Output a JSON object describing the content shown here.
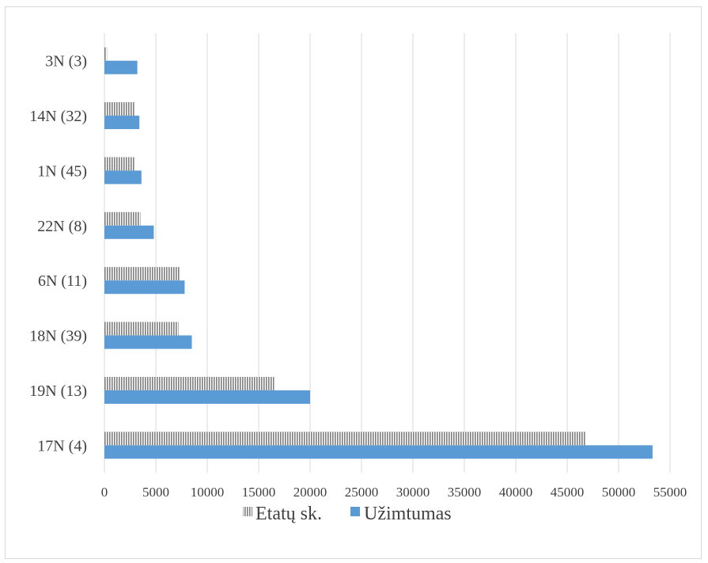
{
  "chart_data": {
    "type": "bar",
    "orientation": "horizontal",
    "title": "",
    "xlabel": "",
    "ylabel": "",
    "categories": [
      "3N (3)",
      "14N (32)",
      "1N (45)",
      "22N (8)",
      "6N (11)",
      "18N (39)",
      "19N (13)",
      "17N (4)"
    ],
    "series": [
      {
        "name": "Etatų sk.",
        "pattern": "vertical-hatch",
        "color": "#7f7f7f",
        "values": [
          250,
          3000,
          3000,
          3500,
          7300,
          7200,
          16500,
          46800
        ]
      },
      {
        "name": "Užimtumas",
        "pattern": "solid",
        "color": "#5b9bd5",
        "values": [
          3200,
          3400,
          3600,
          4800,
          7800,
          8500,
          20000,
          53300
        ]
      }
    ],
    "xlim": [
      0,
      55000
    ],
    "xticks": [
      "0",
      "5000",
      "10000",
      "15000",
      "20000",
      "25000",
      "30000",
      "35000",
      "40000",
      "45000",
      "50000",
      "55000"
    ],
    "grid": "vertical",
    "legend": "bottom"
  }
}
